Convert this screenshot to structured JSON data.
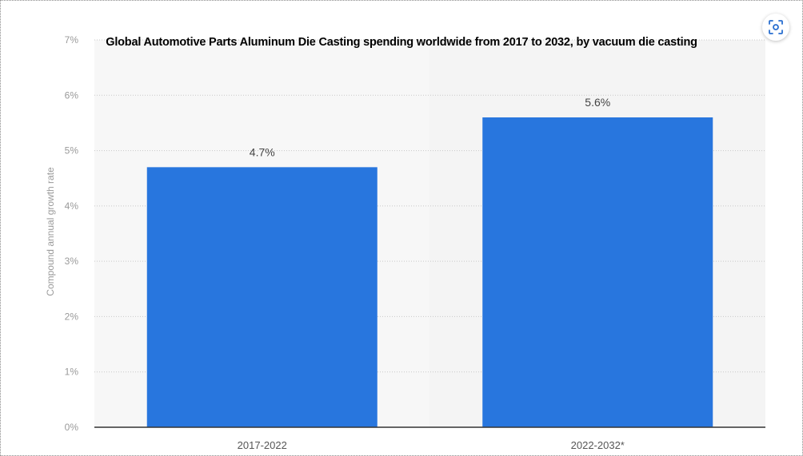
{
  "chart_data": {
    "type": "bar",
    "title": "Global Automotive Parts Aluminum Die Casting spending worldwide from 2017 to 2032, by vacuum die casting",
    "xlabel": "",
    "ylabel": "Compound annual growth rate",
    "categories": [
      "2017-2022",
      "2022-2032*"
    ],
    "values": [
      4.7,
      5.6
    ],
    "value_labels": [
      "4.7%",
      "5.6%"
    ],
    "ylim": [
      0,
      7
    ],
    "yticks": [
      "0%",
      "1%",
      "2%",
      "3%",
      "4%",
      "5%",
      "6%",
      "7%"
    ],
    "grid": true,
    "legend": "none",
    "colors": {
      "bar": "#2876de",
      "grid": "#c8c8c8",
      "tick_text": "#9a9a9a",
      "category_text": "#555555",
      "value_text": "#444444",
      "shade_band": "#f4f4f4",
      "icon": "#2a6fd0"
    }
  },
  "controls": {
    "scan_icon": "scan-icon"
  }
}
